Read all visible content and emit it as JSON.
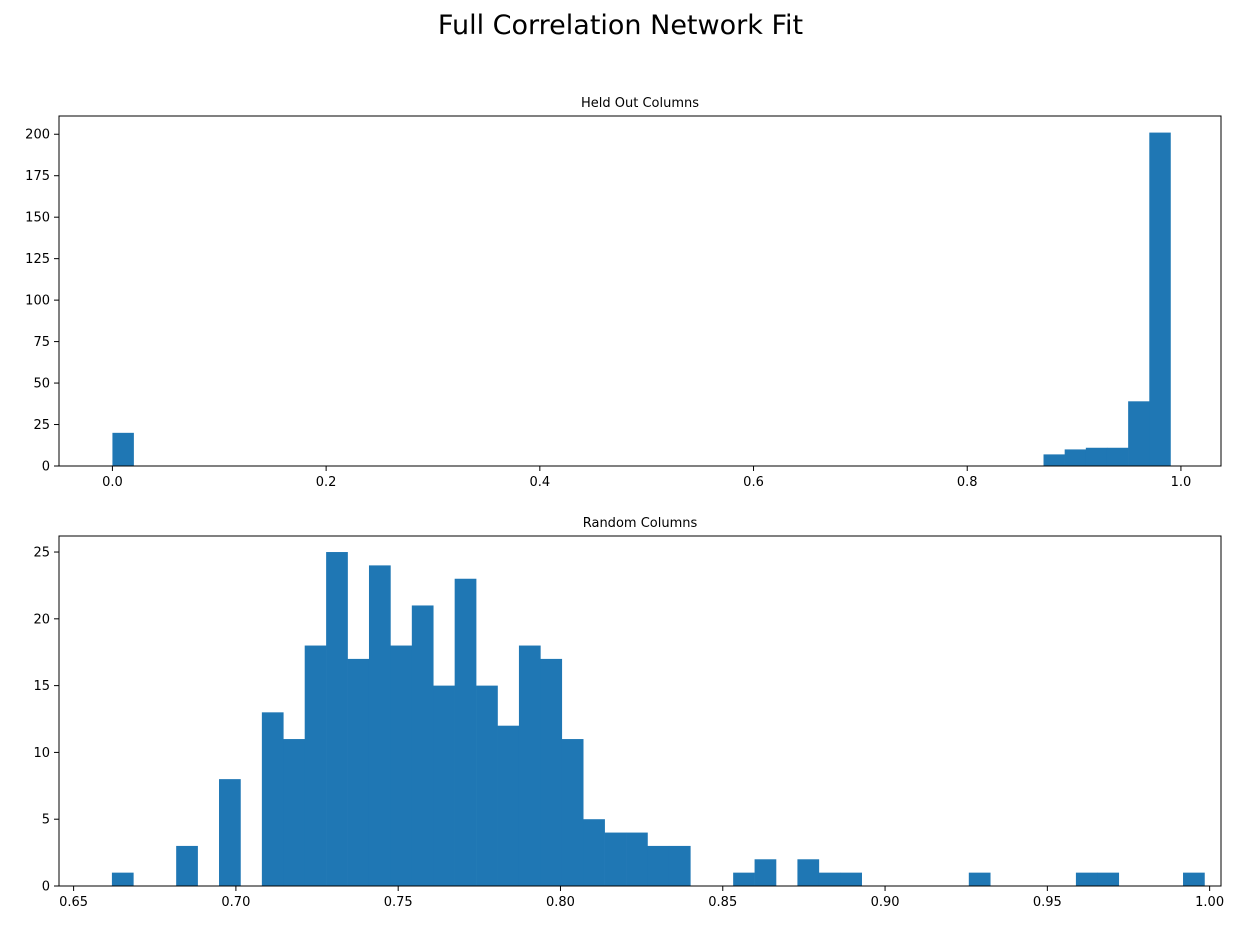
{
  "title": "Full Correlation Network Fit",
  "chart_data": [
    {
      "type": "bar",
      "subtitle": "Held Out Columns",
      "xlim": [
        -0.05,
        1.0375
      ],
      "ylim": [
        0,
        211
      ],
      "xticks": [
        "0.0",
        "0.2",
        "0.4",
        "0.6",
        "0.8",
        "1.0"
      ],
      "xtick_values": [
        0.0,
        0.2,
        0.4,
        0.6,
        0.8,
        1.0
      ],
      "yticks": [
        "0",
        "25",
        "50",
        "75",
        "100",
        "125",
        "150",
        "175",
        "200"
      ],
      "ytick_values": [
        0,
        25,
        50,
        75,
        100,
        125,
        150,
        175,
        200
      ],
      "bins": [
        {
          "x0": 0.0,
          "x1": 0.0198,
          "count": 20
        },
        {
          "x0": 0.8714,
          "x1": 0.8912,
          "count": 7
        },
        {
          "x0": 0.8912,
          "x1": 0.911,
          "count": 10
        },
        {
          "x0": 0.911,
          "x1": 0.9308,
          "count": 11
        },
        {
          "x0": 0.9308,
          "x1": 0.9506,
          "count": 11
        },
        {
          "x0": 0.9506,
          "x1": 0.9704,
          "count": 39
        },
        {
          "x0": 0.9704,
          "x1": 0.9902,
          "count": 201
        }
      ],
      "color": "#1f77b4"
    },
    {
      "type": "bar",
      "subtitle": "Random Columns",
      "xlim": [
        0.6455,
        1.0035
      ],
      "ylim": [
        0,
        26.2
      ],
      "xticks": [
        "0.65",
        "0.70",
        "0.75",
        "0.80",
        "0.85",
        "0.90",
        "0.95",
        "1.00"
      ],
      "xtick_values": [
        0.65,
        0.7,
        0.75,
        0.8,
        0.85,
        0.9,
        0.95,
        1.0
      ],
      "yticks": [
        "0",
        "5",
        "10",
        "15",
        "20",
        "25"
      ],
      "ytick_values": [
        0,
        5,
        10,
        15,
        20,
        25
      ],
      "bin_start": 0.6618,
      "bin_width": 0.0066,
      "counts": [
        1,
        0,
        0,
        3,
        0,
        8,
        0,
        13,
        11,
        18,
        25,
        17,
        24,
        18,
        21,
        15,
        23,
        15,
        12,
        18,
        17,
        11,
        5,
        4,
        4,
        3,
        3,
        0,
        0,
        1,
        2,
        0,
        2,
        1,
        1,
        0,
        0,
        0,
        0,
        0,
        1,
        0,
        0,
        0,
        0,
        1,
        1,
        0,
        0,
        0,
        1
      ],
      "color": "#1f77b4"
    }
  ]
}
